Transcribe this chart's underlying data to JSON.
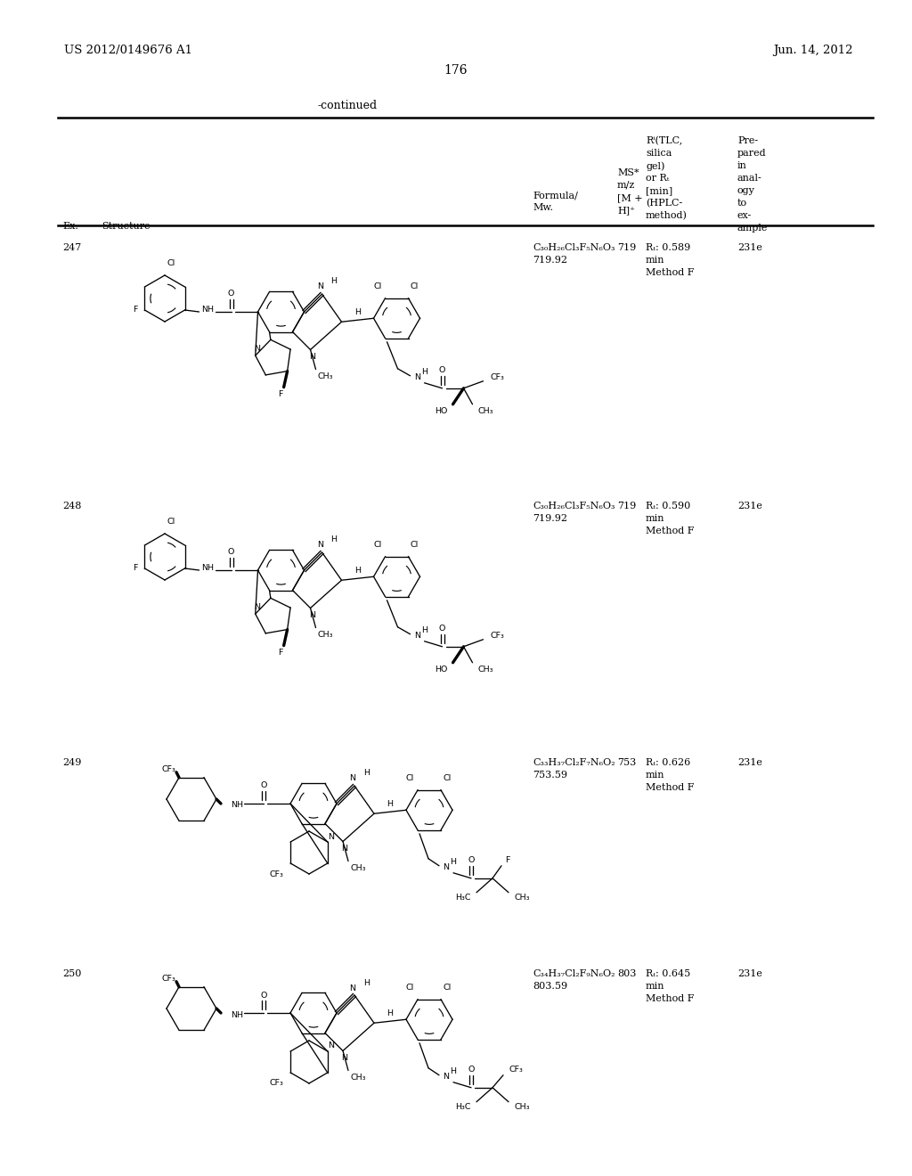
{
  "patent_number": "US 2012/0149676 A1",
  "patent_date": "Jun. 14, 2012",
  "page_number": "176",
  "continued": "-continued",
  "compounds": [
    {
      "ex": "247",
      "f1": "C₃₀H₂₆Cl₃F₅N₆O₃",
      "f2": "719.92",
      "ms": "719",
      "rf1": "Rₜ: 0.589",
      "rf2": "min",
      "rf3": "Method F",
      "an": "231e"
    },
    {
      "ex": "248",
      "f1": "C₃₀H₂₆Cl₃F₅N₆O₃",
      "f2": "719.92",
      "ms": "719",
      "rf1": "Rₜ: 0.590",
      "rf2": "min",
      "rf3": "Method F",
      "an": "231e"
    },
    {
      "ex": "249",
      "f1": "C₃₃H₃₇Cl₂F₇N₆O₂",
      "f2": "753.59",
      "ms": "753",
      "rf1": "Rₜ: 0.626",
      "rf2": "min",
      "rf3": "Method F",
      "an": "231e"
    },
    {
      "ex": "250",
      "f1": "C₃₄H₃₇Cl₂F₉N₆O₂",
      "f2": "803.59",
      "ms": "803",
      "rf1": "Rₜ: 0.645",
      "rf2": "min",
      "rf3": "Method F",
      "an": "231e"
    }
  ]
}
